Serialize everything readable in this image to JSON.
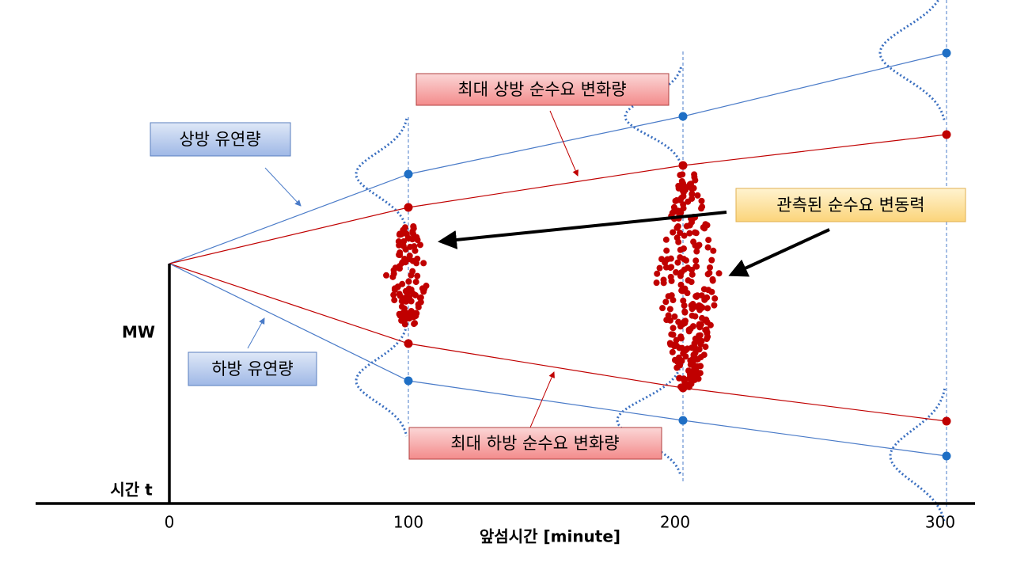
{
  "callouts": {
    "max_up": "최대 상방 순수요 변화량",
    "up_flex": "상방 유연량",
    "observed": "관측된 순수요 변동력",
    "down_flex": "하방 유연량",
    "max_down": "최대 하방 순수요 변화량"
  },
  "axis": {
    "y_label": "MW",
    "origin_label": "시간 t",
    "x_label": "앞섬시간 [minute]",
    "ticks": [
      "0",
      "100",
      "200",
      "300"
    ]
  }
}
